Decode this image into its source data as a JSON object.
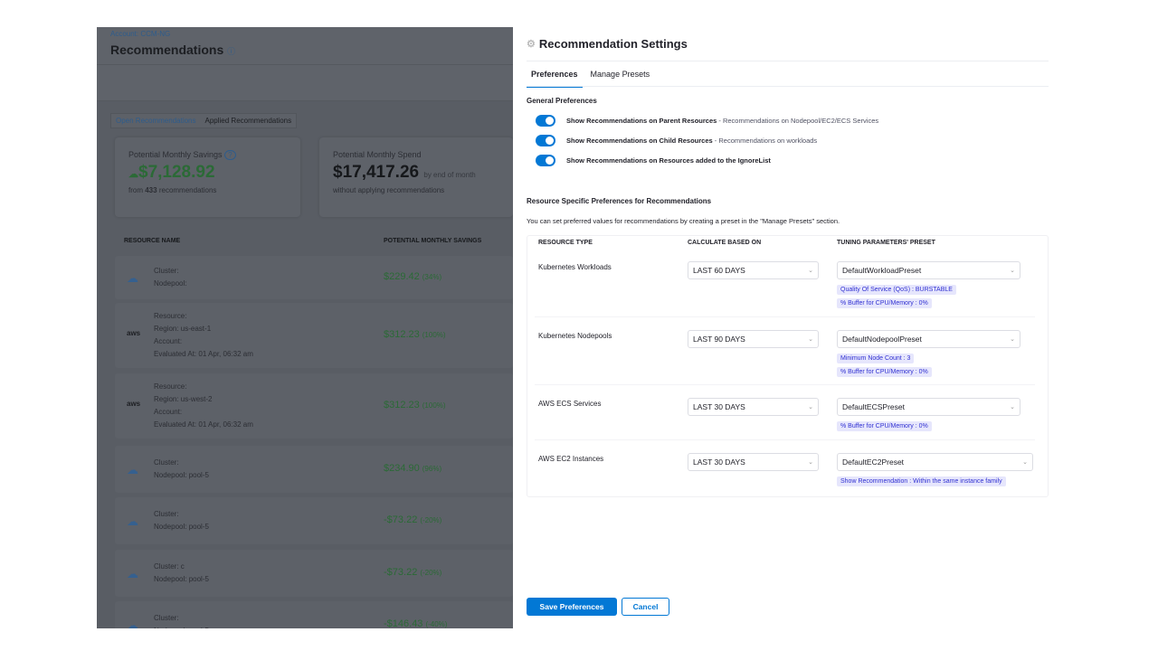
{
  "background": {
    "account": "Account: CCM-NG",
    "title": "Recommendations",
    "tabs": [
      "Open Recommendations",
      "Applied Recommendations"
    ],
    "savings": {
      "label": "Potential Monthly Savings",
      "value": "$7,128.92",
      "sub_pre": "from",
      "count": "433",
      "sub_post": "recommendations"
    },
    "spend": {
      "label": "Potential Monthly Spend",
      "value": "$17,417.26",
      "suffix": "by end of month",
      "sub": "without applying recommendations"
    },
    "columns": [
      "RESOURCE NAME",
      "POTENTIAL MONTHLY SAVINGS"
    ],
    "rows": [
      {
        "provider": "gcp",
        "lines": [
          "Cluster:",
          "Nodepool:"
        ],
        "amount": "$229.42",
        "pct": "(34%)"
      },
      {
        "provider": "aws",
        "lines": [
          "Resource:",
          "Region: us-east-1",
          "Account:",
          "Evaluated At: 01 Apr, 06:32 am"
        ],
        "amount": "$312.23",
        "pct": "(100%)"
      },
      {
        "provider": "aws",
        "lines": [
          "Resource:",
          "Region: us-west-2",
          "Account:",
          "Evaluated At: 01 Apr, 06:32 am"
        ],
        "amount": "$312.23",
        "pct": "(100%)"
      },
      {
        "provider": "gcp",
        "lines": [
          "Cluster:",
          "Nodepool: pool-5"
        ],
        "amount": "$234.90",
        "pct": "(96%)"
      },
      {
        "provider": "gcp",
        "lines": [
          "Cluster:",
          "Nodepool: pool-5"
        ],
        "amount": "-$73.22",
        "pct": "(-20%)"
      },
      {
        "provider": "gcp",
        "lines": [
          "Cluster: c",
          "Nodepool: pool-5"
        ],
        "amount": "-$73.22",
        "pct": "(-20%)"
      },
      {
        "provider": "gcp",
        "lines": [
          "Cluster:",
          "Nodepool: pool-5"
        ],
        "amount": "-$146.43",
        "pct": "(-40%)"
      }
    ]
  },
  "drawer": {
    "title": "Recommendation Settings",
    "tabs": [
      "Preferences",
      "Manage Presets"
    ],
    "general_title": "General Preferences",
    "toggles": [
      {
        "label": "Show Recommendations on Parent Resources",
        "desc": " - Recommendations on Nodepool/EC2/ECS Services",
        "on": true
      },
      {
        "label": "Show Recommendations on Child Resources",
        "desc": " - Recommendations on workloads",
        "on": true
      },
      {
        "label": "Show Recommendations on Resources added to the IgnoreList",
        "desc": "",
        "on": true
      }
    ],
    "resource_title": "Resource Specific Preferences for Recommendations",
    "resource_desc": "You can set preferred values for recommendations by creating a preset in the \"Manage Presets\" section.",
    "columns": [
      "RESOURCE TYPE",
      "CALCULATE BASED ON",
      "TUNING PARAMETERS' PRESET"
    ],
    "rows": [
      {
        "type": "Kubernetes Workloads",
        "period": "LAST 60 DAYS",
        "preset": "DefaultWorkloadPreset",
        "tags": [
          "Quality Of Service (QoS) : BURSTABLE",
          "% Buffer for CPU/Memory : 0%"
        ]
      },
      {
        "type": "Kubernetes Nodepools",
        "period": "LAST 90 DAYS",
        "preset": "DefaultNodepoolPreset",
        "tags": [
          "Minimum Node Count : 3",
          "% Buffer for CPU/Memory : 0%"
        ]
      },
      {
        "type": "AWS ECS Services",
        "period": "LAST 30 DAYS",
        "preset": "DefaultECSPreset",
        "tags": [
          "% Buffer for CPU/Memory : 0%"
        ]
      },
      {
        "type": "AWS EC2 Instances",
        "period": "LAST 30 DAYS",
        "preset": "DefaultEC2Preset",
        "tags": [
          "Show Recommendation : Within the same instance family"
        ]
      }
    ],
    "save_label": "Save Preferences",
    "cancel_label": "Cancel"
  },
  "colors": {
    "accent": "#0278d5",
    "savings_green": "#1b8a3a",
    "tag_bg": "#e6e6fc",
    "tag_text": "#3131d2"
  }
}
